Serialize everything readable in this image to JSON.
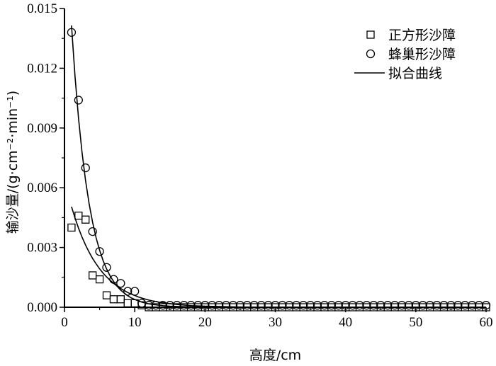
{
  "chart_data": {
    "type": "scatter",
    "xlabel": "高度/cm",
    "ylabel": "输沙量/(g·cm⁻²·min⁻¹)",
    "xlim": [
      0,
      60
    ],
    "ylim": [
      0,
      0.015
    ],
    "xticks": [
      0,
      10,
      20,
      30,
      40,
      50,
      60
    ],
    "yticks": [
      0.0,
      0.003,
      0.006,
      0.009,
      0.012,
      0.015
    ],
    "ytick_labels": [
      "0.000",
      "0.003",
      "0.006",
      "0.009",
      "0.012",
      "0.015"
    ],
    "legend_position": "top-right",
    "grid": false,
    "series": [
      {
        "name": "正方形沙障",
        "marker": "square",
        "x": [
          1,
          2,
          3,
          4,
          5,
          6,
          7,
          8,
          9,
          10,
          11,
          12,
          13,
          14,
          15,
          16,
          17,
          18,
          19,
          20,
          21,
          22,
          23,
          24,
          25,
          26,
          27,
          28,
          29,
          30,
          31,
          32,
          33,
          34,
          35,
          36,
          37,
          38,
          39,
          40,
          41,
          42,
          43,
          44,
          45,
          46,
          47,
          48,
          49,
          50,
          51,
          52,
          53,
          54,
          55,
          56,
          57,
          58,
          59,
          60
        ],
        "y": [
          0.004,
          0.0046,
          0.0044,
          0.0016,
          0.0014,
          0.0006,
          0.0004,
          0.0004,
          0.0002,
          0.0002,
          0.0001,
          0.0,
          0.0,
          0.0,
          0.0,
          0.0,
          0.0,
          0.0,
          0.0,
          0.0,
          0.0,
          0.0,
          0.0,
          0.0,
          0.0,
          0.0,
          0.0,
          0.0,
          0.0,
          0.0,
          0.0,
          0.0,
          0.0,
          0.0,
          0.0,
          0.0,
          0.0,
          0.0,
          0.0,
          0.0,
          0.0,
          0.0,
          0.0,
          0.0,
          0.0,
          0.0,
          0.0,
          0.0,
          0.0,
          0.0,
          0.0,
          0.0,
          0.0,
          0.0,
          0.0,
          0.0,
          0.0,
          0.0,
          0.0,
          0.0
        ]
      },
      {
        "name": "蜂巢形沙障",
        "marker": "circle",
        "x": [
          1,
          2,
          3,
          4,
          5,
          6,
          7,
          8,
          9,
          10,
          11,
          12,
          13,
          14,
          15,
          16,
          17,
          18,
          19,
          20,
          21,
          22,
          23,
          24,
          25,
          26,
          27,
          28,
          29,
          30,
          31,
          32,
          33,
          34,
          35,
          36,
          37,
          38,
          39,
          40,
          41,
          42,
          43,
          44,
          45,
          46,
          47,
          48,
          49,
          50,
          51,
          52,
          53,
          54,
          55,
          56,
          57,
          58,
          59,
          60
        ],
        "y": [
          0.0138,
          0.0104,
          0.007,
          0.0038,
          0.0028,
          0.002,
          0.0014,
          0.0012,
          0.0008,
          0.0008,
          0.0002,
          0.0001,
          0.0001,
          0.0001,
          0.0001,
          0.0001,
          0.0001,
          0.0001,
          0.0001,
          0.0001,
          0.0001,
          0.0001,
          0.0001,
          0.0001,
          0.0001,
          0.0001,
          0.0001,
          0.0001,
          0.0001,
          0.0001,
          0.0001,
          0.0001,
          0.0001,
          0.0001,
          0.0001,
          0.0001,
          0.0001,
          0.0001,
          0.0001,
          0.0001,
          0.0001,
          0.0001,
          0.0001,
          0.0001,
          0.0001,
          0.0001,
          0.0001,
          0.0001,
          0.0001,
          0.0001,
          0.0001,
          0.0001,
          0.0001,
          0.0001,
          0.0001,
          0.0001,
          0.0001,
          0.0001,
          0.0001,
          0.0001
        ]
      },
      {
        "name": "拟合曲线",
        "marker": "line",
        "x": [
          1,
          1.5,
          2,
          2.5,
          3,
          3.5,
          4,
          4.5,
          5,
          5.5,
          6,
          6.5,
          7,
          7.5,
          8,
          8.5,
          9,
          9.5,
          10,
          10.5,
          11,
          11.5,
          12,
          12.5,
          13,
          13.5,
          14,
          15,
          16,
          18,
          20,
          25,
          30,
          35,
          40,
          45,
          50,
          55,
          60
        ],
        "y": [
          0.00505,
          0.00448,
          0.00397,
          0.00352,
          0.00312,
          0.00277,
          0.00245,
          0.00218,
          0.00193,
          0.00171,
          0.00152,
          0.00135,
          0.0012,
          0.00106,
          0.00094,
          0.00084,
          0.00074,
          0.00066,
          0.00059,
          0.00052,
          0.00046,
          0.00041,
          0.00036,
          0.00032,
          0.00029,
          0.00025,
          0.00023,
          0.00018,
          0.00014,
          8e-05,
          5e-05,
          1e-05,
          0.0,
          0.0,
          0.0,
          0.0,
          0.0,
          0.0,
          0.0
        ]
      },
      {
        "name": "",
        "marker": "line",
        "x": [
          1,
          1.5,
          2,
          2.5,
          3,
          3.5,
          4,
          4.5,
          5,
          5.5,
          6,
          6.5,
          7,
          7.5,
          8,
          8.5,
          9,
          9.5,
          10,
          10.5,
          11,
          11.5,
          12,
          12.5,
          13,
          13.5,
          14,
          15,
          16,
          18,
          20,
          25,
          30,
          35,
          40,
          45,
          50,
          55,
          60
        ],
        "y": [
          0.01415,
          0.01159,
          0.00949,
          0.00777,
          0.00636,
          0.00521,
          0.00427,
          0.00349,
          0.00286,
          0.00234,
          0.00192,
          0.00157,
          0.00129,
          0.00105,
          0.00086,
          0.00071,
          0.00058,
          0.00047,
          0.00039,
          0.00032,
          0.00026,
          0.00021,
          0.00017,
          0.00014,
          0.00012,
          0.0001,
          8e-05,
          5e-05,
          4e-05,
          2e-05,
          1e-05,
          0.0,
          0.0,
          0.0,
          0.0,
          0.0,
          0.0,
          0.0,
          0.0
        ]
      }
    ]
  }
}
